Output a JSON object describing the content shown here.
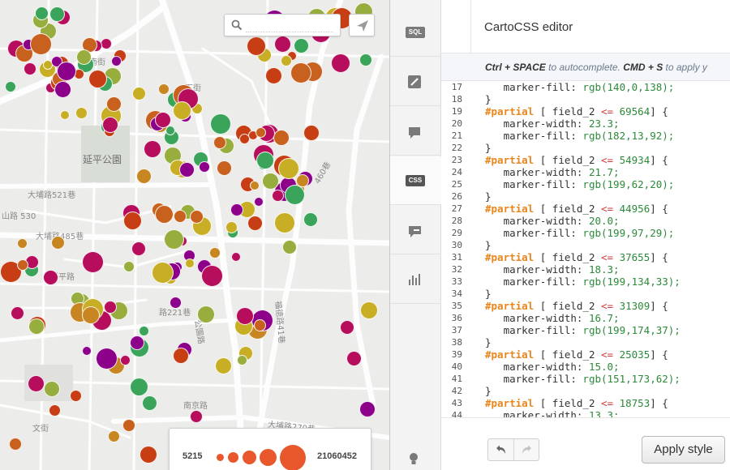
{
  "map": {
    "labels": {
      "park": "延平公園",
      "road_521": "大埔路521巷",
      "road_530": "山路 530",
      "road_485": "大埔路485巷",
      "road_yanping": "延平路",
      "road_221": "路221巷",
      "road_gongyuan": "公園路",
      "road_nanjing": "南京路",
      "road_270": "大埔路270巷",
      "road_41": "福德路41巷",
      "road_460": "460巷",
      "road_nan": "南街",
      "road_xia": "下街",
      "road_wen": "文街"
    },
    "search": {
      "placeholder": "",
      "value": ""
    },
    "legend": {
      "min_label": "5215",
      "max_label": "21060452",
      "bubble_color": "#e8582c"
    },
    "palette": [
      "#8c008a",
      "#b60d5c",
      "#c73e14",
      "#c7611d",
      "#c78621",
      "#c7ae25",
      "#97ad3e",
      "#3aa55a"
    ]
  },
  "toolbar": {
    "sql_label": "SQL",
    "css_label": "CSS",
    "icons": [
      "sql-icon",
      "wizard-brush-icon",
      "infowindow-icon",
      "css-icon",
      "legend-icon",
      "filters-chart-icon",
      "bulb-icon"
    ]
  },
  "panel": {
    "title": "CartoCSS editor",
    "hint": {
      "k1": "Ctrl + SPACE",
      "t1": " to autocomplete. ",
      "k2": "CMD + S",
      "t2": " to apply y"
    },
    "code_lines": [
      {
        "n": "17",
        "indent": true,
        "prop": "marker-fill",
        "val": "rgb(140,0,138);"
      },
      {
        "n": "18",
        "brace": "}"
      },
      {
        "n": "19",
        "field": "field_2",
        "op": "<=",
        "num": "69564"
      },
      {
        "n": "20",
        "indent": true,
        "prop": "marker-width",
        "val": "23.3;"
      },
      {
        "n": "21",
        "indent": true,
        "prop": "marker-fill",
        "val": "rgb(182,13,92);"
      },
      {
        "n": "22",
        "brace": "}"
      },
      {
        "n": "23",
        "field": "field_2",
        "op": "<=",
        "num": "54934"
      },
      {
        "n": "24",
        "indent": true,
        "prop": "marker-width",
        "val": "21.7;"
      },
      {
        "n": "25",
        "indent": true,
        "prop": "marker-fill",
        "val": "rgb(199,62,20);"
      },
      {
        "n": "26",
        "brace": "}"
      },
      {
        "n": "27",
        "field": "field_2",
        "op": "<=",
        "num": "44956"
      },
      {
        "n": "28",
        "indent": true,
        "prop": "marker-width",
        "val": "20.0;"
      },
      {
        "n": "29",
        "indent": true,
        "prop": "marker-fill",
        "val": "rgb(199,97,29);"
      },
      {
        "n": "30",
        "brace": "}"
      },
      {
        "n": "31",
        "field": "field_2",
        "op": "<=",
        "num": "37655"
      },
      {
        "n": "32",
        "indent": true,
        "prop": "marker-width",
        "val": "18.3;"
      },
      {
        "n": "33",
        "indent": true,
        "prop": "marker-fill",
        "val": "rgb(199,134,33);"
      },
      {
        "n": "34",
        "brace": "}"
      },
      {
        "n": "35",
        "field": "field_2",
        "op": "<=",
        "num": "31309"
      },
      {
        "n": "36",
        "indent": true,
        "prop": "marker-width",
        "val": "16.7;"
      },
      {
        "n": "37",
        "indent": true,
        "prop": "marker-fill",
        "val": "rgb(199,174,37);"
      },
      {
        "n": "38",
        "brace": "}"
      },
      {
        "n": "39",
        "field": "field_2",
        "op": "<=",
        "num": "25035"
      },
      {
        "n": "40",
        "indent": true,
        "prop": "marker-width",
        "val": "15.0;"
      },
      {
        "n": "41",
        "indent": true,
        "prop": "marker-fill",
        "val": "rgb(151,173,62);"
      },
      {
        "n": "42",
        "brace": "}"
      },
      {
        "n": "43",
        "field": "field_2",
        "op": "<=",
        "num": "18753"
      },
      {
        "n": "44",
        "indent": true,
        "prop": "marker-width",
        "val": "13.3;"
      }
    ],
    "selector": "#partial",
    "apply_label": "Apply style",
    "undo_icon": "undo-icon",
    "redo_icon": "redo-icon"
  }
}
